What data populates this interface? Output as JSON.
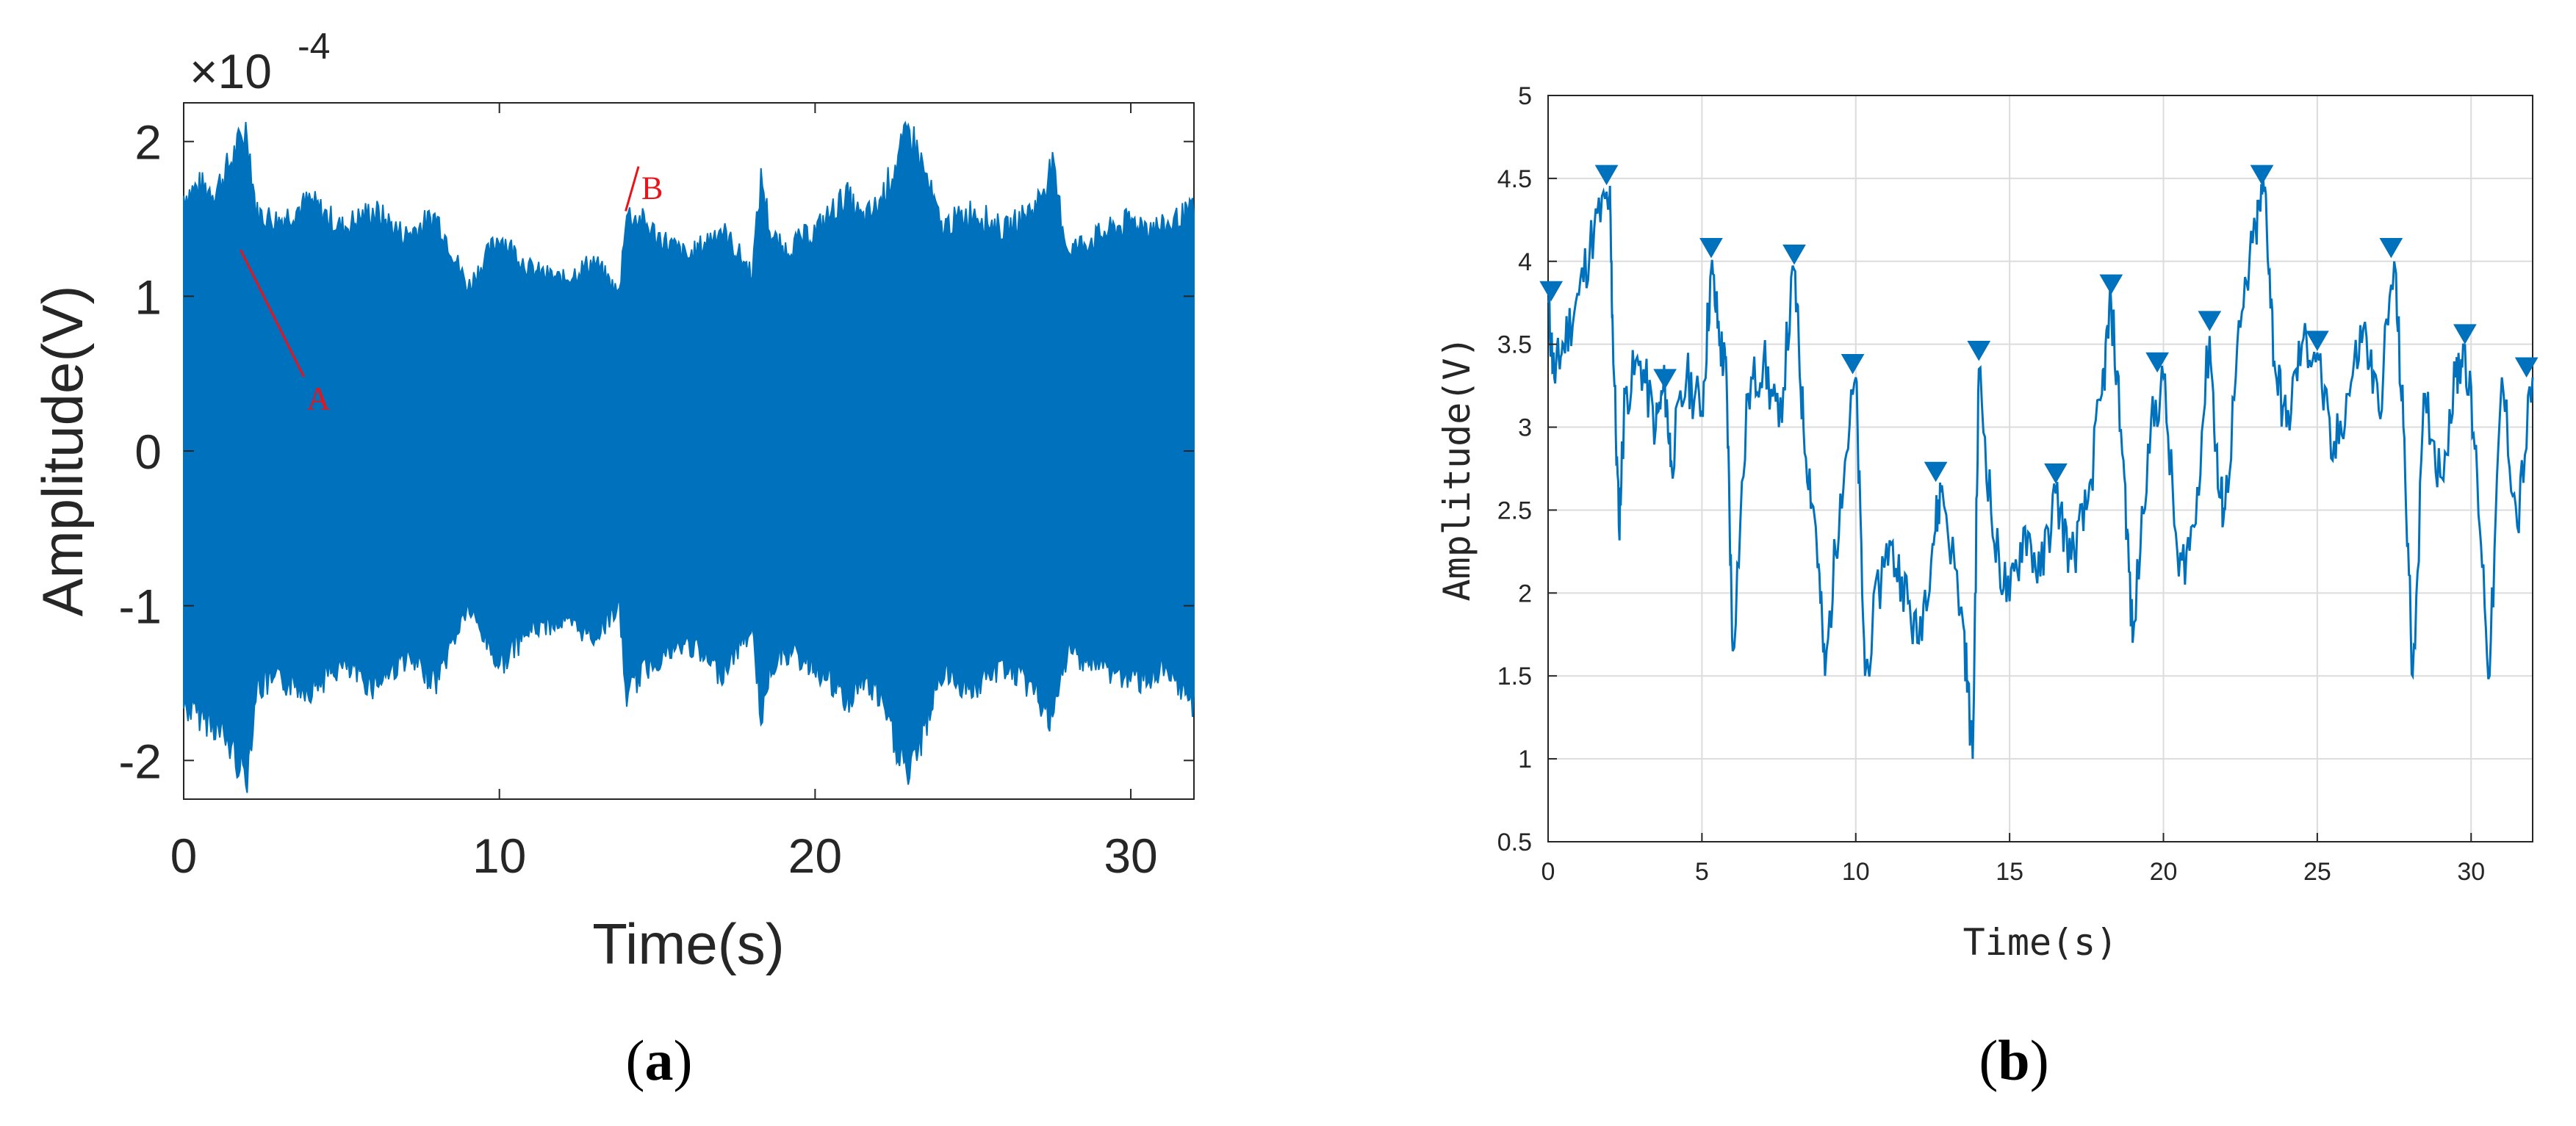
{
  "colors": {
    "signal": "#0072bd",
    "annotation": "#e8141a",
    "grid": "#dcdcdc",
    "axis": "#262626"
  },
  "captions": {
    "a_letter": "a",
    "b_letter": "b"
  },
  "chart_data": [
    {
      "panel": "a",
      "type": "line",
      "xlabel": "Time(s)",
      "ylabel": "Amplitude(V)",
      "y_exponent_label": "×10",
      "y_exponent_power": "-4",
      "xlim": [
        0,
        32
      ],
      "ylim": [
        -2.25,
        2.25
      ],
      "x_ticks": [
        0,
        10,
        20,
        30
      ],
      "y_ticks": [
        -2,
        -1,
        0,
        1,
        2
      ],
      "grid": false,
      "annotations": [
        {
          "label": "A",
          "x": 3.9,
          "y": 0.27,
          "point_x": 1.8,
          "point_y": 1.3
        },
        {
          "label": "B",
          "x": 14.5,
          "y": 1.63,
          "point_x": 14.0,
          "point_y": 1.55
        }
      ],
      "upper_envelope": [
        [
          0.0,
          1.72
        ],
        [
          0.5,
          1.78
        ],
        [
          1.0,
          1.75
        ],
        [
          1.5,
          1.95
        ],
        [
          2.0,
          2.18
        ],
        [
          2.3,
          1.6
        ],
        [
          3.0,
          1.55
        ],
        [
          4.0,
          1.68
        ],
        [
          5.0,
          1.5
        ],
        [
          6.0,
          1.62
        ],
        [
          7.0,
          1.45
        ],
        [
          8.0,
          1.58
        ],
        [
          8.5,
          1.35
        ],
        [
          9.0,
          1.1
        ],
        [
          10.0,
          1.45
        ],
        [
          11.0,
          1.22
        ],
        [
          12.0,
          1.15
        ],
        [
          13.0,
          1.28
        ],
        [
          13.8,
          1.05
        ],
        [
          14.0,
          1.6
        ],
        [
          14.5,
          1.55
        ],
        [
          15.0,
          1.45
        ],
        [
          16.0,
          1.3
        ],
        [
          17.0,
          1.5
        ],
        [
          18.0,
          1.2
        ],
        [
          18.3,
          1.85
        ],
        [
          18.6,
          1.45
        ],
        [
          19.0,
          1.35
        ],
        [
          20.0,
          1.48
        ],
        [
          21.0,
          1.72
        ],
        [
          21.5,
          1.55
        ],
        [
          22.0,
          1.65
        ],
        [
          22.5,
          1.9
        ],
        [
          23.0,
          2.17
        ],
        [
          23.5,
          1.85
        ],
        [
          24.0,
          1.5
        ],
        [
          25.0,
          1.62
        ],
        [
          26.0,
          1.48
        ],
        [
          27.0,
          1.65
        ],
        [
          27.5,
          1.92
        ],
        [
          28.0,
          1.35
        ],
        [
          29.0,
          1.45
        ],
        [
          30.0,
          1.55
        ],
        [
          31.0,
          1.5
        ],
        [
          32.0,
          1.62
        ]
      ],
      "lower_envelope": [
        [
          0.0,
          -1.72
        ],
        [
          0.5,
          -1.78
        ],
        [
          1.0,
          -1.85
        ],
        [
          1.5,
          -2.0
        ],
        [
          2.0,
          -2.2
        ],
        [
          2.3,
          -1.6
        ],
        [
          3.0,
          -1.55
        ],
        [
          4.0,
          -1.6
        ],
        [
          5.0,
          -1.45
        ],
        [
          6.0,
          -1.58
        ],
        [
          7.0,
          -1.4
        ],
        [
          8.0,
          -1.55
        ],
        [
          8.5,
          -1.3
        ],
        [
          9.0,
          -1.05
        ],
        [
          10.0,
          -1.45
        ],
        [
          11.0,
          -1.2
        ],
        [
          12.0,
          -1.15
        ],
        [
          13.0,
          -1.25
        ],
        [
          13.8,
          -1.05
        ],
        [
          14.0,
          -1.65
        ],
        [
          14.5,
          -1.5
        ],
        [
          15.0,
          -1.4
        ],
        [
          16.0,
          -1.3
        ],
        [
          17.0,
          -1.5
        ],
        [
          18.0,
          -1.2
        ],
        [
          18.3,
          -1.8
        ],
        [
          18.6,
          -1.45
        ],
        [
          19.0,
          -1.35
        ],
        [
          20.0,
          -1.45
        ],
        [
          21.0,
          -1.7
        ],
        [
          21.5,
          -1.55
        ],
        [
          22.0,
          -1.65
        ],
        [
          22.5,
          -1.95
        ],
        [
          23.0,
          -2.2
        ],
        [
          23.5,
          -1.85
        ],
        [
          24.0,
          -1.5
        ],
        [
          25.0,
          -1.6
        ],
        [
          26.0,
          -1.45
        ],
        [
          27.0,
          -1.62
        ],
        [
          27.5,
          -1.85
        ],
        [
          28.0,
          -1.35
        ],
        [
          29.0,
          -1.45
        ],
        [
          30.0,
          -1.55
        ],
        [
          31.0,
          -1.5
        ],
        [
          32.0,
          -1.7
        ]
      ]
    },
    {
      "panel": "b",
      "type": "line",
      "xlabel": "Time(s)",
      "ylabel": "Amplitude(V)",
      "xlim": [
        0,
        32
      ],
      "ylim": [
        0.5,
        5
      ],
      "x_ticks": [
        0,
        5,
        10,
        15,
        20,
        25,
        30
      ],
      "y_ticks": [
        0.5,
        1,
        1.5,
        2,
        2.5,
        3,
        3.5,
        4,
        4.5,
        5
      ],
      "grid": true,
      "series": [
        {
          "x": [
            0.0,
            0.2,
            0.5,
            1.0,
            1.5,
            2.0,
            2.1,
            2.3,
            2.5,
            3.0,
            3.5,
            3.8,
            4.0,
            4.5,
            5.0,
            5.3,
            5.6,
            5.8,
            6.0,
            6.5,
            7.0,
            7.5,
            8.0,
            8.3,
            8.7,
            9.0,
            9.5,
            10.0,
            10.3,
            11.0,
            11.5,
            12.0,
            12.5,
            12.8,
            13.5,
            13.8,
            14.0,
            14.5,
            15.0,
            15.5,
            16.0,
            16.5,
            17.0,
            17.5,
            18.0,
            18.3,
            18.7,
            19.0,
            19.5,
            20.0,
            20.5,
            21.0,
            21.5,
            21.8,
            22.0,
            22.5,
            23.0,
            23.3,
            23.6,
            24.0,
            24.5,
            25.0,
            25.5,
            26.0,
            26.5,
            27.0,
            27.5,
            27.8,
            28.1,
            28.5,
            29.0,
            29.5,
            29.8,
            30.2,
            30.6,
            31.0,
            31.5,
            32.0
          ],
          "y": [
            3.75,
            3.3,
            3.5,
            3.8,
            4.2,
            4.4,
            3.6,
            2.4,
            3.2,
            3.4,
            3.0,
            3.25,
            2.8,
            3.3,
            3.1,
            3.95,
            3.5,
            3.3,
            1.65,
            3.2,
            3.4,
            3.0,
            3.95,
            3.0,
            2.4,
            1.5,
            2.6,
            3.3,
            1.5,
            2.3,
            2.1,
            1.7,
            2.3,
            2.65,
            1.8,
            1.0,
            3.35,
            2.3,
            1.95,
            2.4,
            2.1,
            2.6,
            2.2,
            2.5,
            3.2,
            3.75,
            2.8,
            1.7,
            2.9,
            3.3,
            2.1,
            2.4,
            3.55,
            2.6,
            2.5,
            3.6,
            4.2,
            4.45,
            3.4,
            3.0,
            3.5,
            3.45,
            2.8,
            3.2,
            3.6,
            3.1,
            4.0,
            3.0,
            1.5,
            3.2,
            2.7,
            3.3,
            3.5,
            2.7,
            1.5,
            3.3,
            2.4,
            3.3
          ]
        }
      ],
      "peaks": [
        [
          0.1,
          3.79
        ],
        [
          1.9,
          4.49
        ],
        [
          3.8,
          3.26
        ],
        [
          5.3,
          4.05
        ],
        [
          8.0,
          4.01
        ],
        [
          9.9,
          3.35
        ],
        [
          12.6,
          2.7
        ],
        [
          14.0,
          3.43
        ],
        [
          16.5,
          2.69
        ],
        [
          18.3,
          3.83
        ],
        [
          19.8,
          3.36
        ],
        [
          21.5,
          3.61
        ],
        [
          23.2,
          4.49
        ],
        [
          25.0,
          3.49
        ],
        [
          27.4,
          4.05
        ],
        [
          29.8,
          3.53
        ],
        [
          31.8,
          3.33
        ]
      ]
    }
  ]
}
